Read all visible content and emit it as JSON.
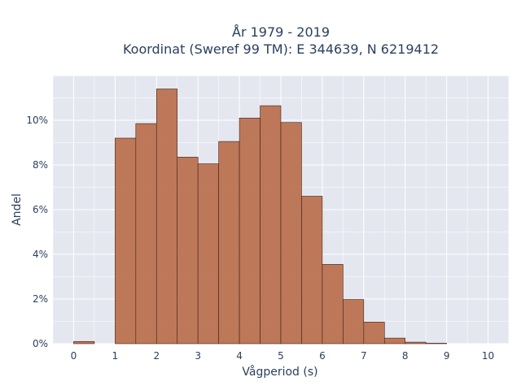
{
  "chart_data": {
    "type": "bar",
    "title_line1": "År 1979 - 2019",
    "title_line2": "Koordinat (Sweref 99 TM): E 344639, N 6219412",
    "xlabel": "Vågperiod (s)",
    "ylabel": "Andel",
    "bin_width": 0.5,
    "bins": [
      {
        "start": 0.0,
        "value": 0.1
      },
      {
        "start": 0.5,
        "value": 0.0
      },
      {
        "start": 1.0,
        "value": 9.2
      },
      {
        "start": 1.5,
        "value": 9.85
      },
      {
        "start": 2.0,
        "value": 11.4
      },
      {
        "start": 2.5,
        "value": 8.35
      },
      {
        "start": 3.0,
        "value": 8.05
      },
      {
        "start": 3.5,
        "value": 9.05
      },
      {
        "start": 4.0,
        "value": 10.1
      },
      {
        "start": 4.5,
        "value": 10.65
      },
      {
        "start": 5.0,
        "value": 9.9
      },
      {
        "start": 5.5,
        "value": 6.6
      },
      {
        "start": 6.0,
        "value": 3.55
      },
      {
        "start": 6.5,
        "value": 1.98
      },
      {
        "start": 7.0,
        "value": 0.97
      },
      {
        "start": 7.5,
        "value": 0.25
      },
      {
        "start": 8.0,
        "value": 0.07
      },
      {
        "start": 8.5,
        "value": 0.02
      },
      {
        "start": 9.0,
        "value": 0.0
      },
      {
        "start": 9.5,
        "value": 0.0
      }
    ],
    "xlim": [
      -0.5,
      10.5
    ],
    "ylim": [
      0,
      12
    ],
    "x_ticks": [
      {
        "value": 0,
        "label": "0"
      },
      {
        "value": 1,
        "label": "1"
      },
      {
        "value": 2,
        "label": "2"
      },
      {
        "value": 3,
        "label": "3"
      },
      {
        "value": 4,
        "label": "4"
      },
      {
        "value": 5,
        "label": "5"
      },
      {
        "value": 6,
        "label": "6"
      },
      {
        "value": 7,
        "label": "7"
      },
      {
        "value": 8,
        "label": "8"
      },
      {
        "value": 9,
        "label": "9"
      },
      {
        "value": 10,
        "label": "10"
      }
    ],
    "y_ticks": [
      {
        "value": 0,
        "label": "0%"
      },
      {
        "value": 2,
        "label": "2%"
      },
      {
        "value": 4,
        "label": "4%"
      },
      {
        "value": 6,
        "label": "6%"
      },
      {
        "value": 8,
        "label": "8%"
      },
      {
        "value": 10,
        "label": "10%"
      }
    ],
    "grid": true,
    "colors": {
      "bar_fill": "#bb7250",
      "bar_stroke": "#3d2415",
      "plot_bg": "#e5e7f0",
      "grid": "#ffffff"
    }
  }
}
